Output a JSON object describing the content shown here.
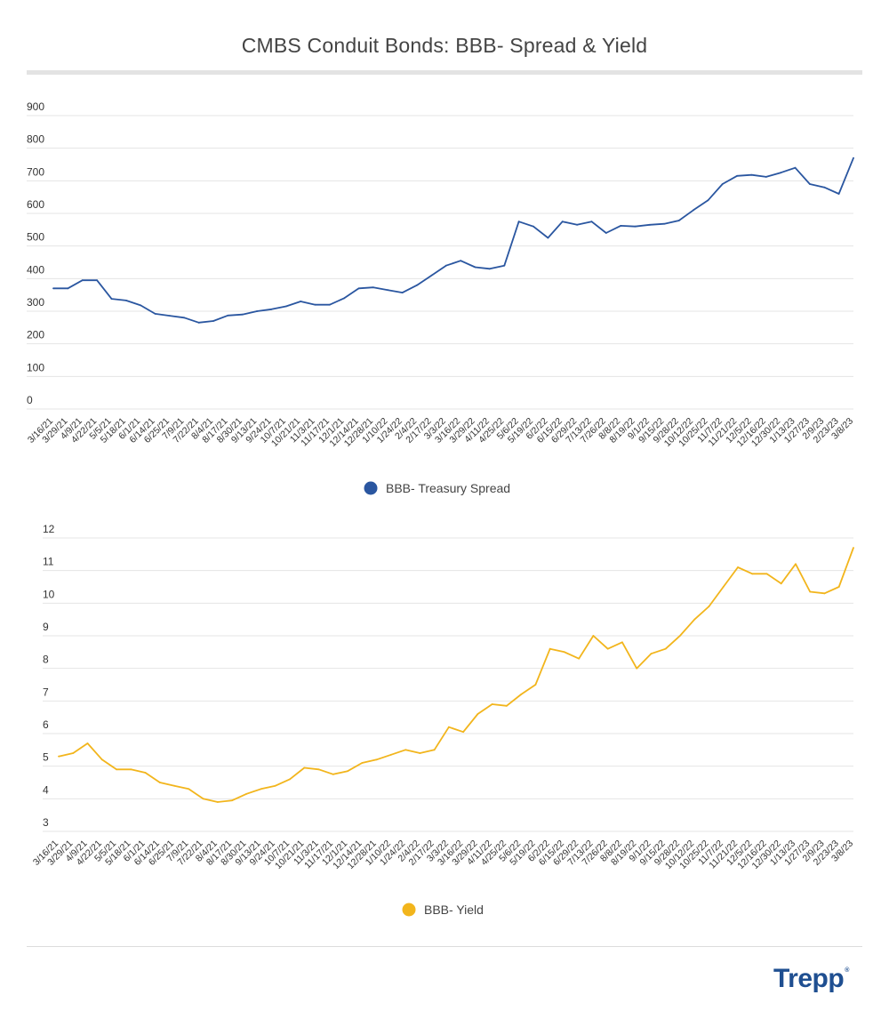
{
  "title": "CMBS Conduit Bonds: BBB- Spread & Yield",
  "logo": {
    "text": "Trepp",
    "mark": "®",
    "color": "#1f4f91"
  },
  "chart_data": [
    {
      "type": "line",
      "title": "",
      "xlabel": "",
      "ylabel": "",
      "ylim": [
        0,
        900
      ],
      "yticks": [
        0,
        100,
        200,
        300,
        400,
        500,
        600,
        700,
        800,
        900
      ],
      "grid": true,
      "legend": "bottom-center",
      "categories": [
        "3/16/21",
        "3/29/21",
        "4/9/21",
        "4/22/21",
        "5/5/21",
        "5/18/21",
        "6/1/21",
        "6/14/21",
        "6/25/21",
        "7/9/21",
        "7/22/21",
        "8/4/21",
        "8/17/21",
        "8/30/21",
        "9/13/21",
        "9/24/21",
        "10/7/21",
        "10/21/21",
        "11/3/21",
        "11/17/21",
        "12/1/21",
        "12/14/21",
        "12/28/21",
        "1/10/22",
        "1/24/22",
        "2/4/22",
        "2/17/22",
        "3/3/22",
        "3/16/22",
        "3/29/22",
        "4/11/22",
        "4/25/22",
        "5/6/22",
        "5/19/22",
        "6/2/22",
        "6/15/22",
        "6/29/22",
        "7/13/22",
        "7/26/22",
        "8/8/22",
        "8/19/22",
        "9/1/22",
        "9/15/22",
        "9/28/22",
        "10/12/22",
        "10/25/22",
        "11/7/22",
        "11/21/22",
        "12/5/22",
        "12/16/22",
        "12/30/22",
        "1/13/23",
        "1/27/23",
        "2/9/23",
        "2/23/23",
        "3/8/23"
      ],
      "series": [
        {
          "name": "BBB- Treasury Spread",
          "color": "#2a56a0",
          "values": [
            370,
            370,
            395,
            395,
            338,
            333,
            318,
            292,
            286,
            280,
            265,
            270,
            287,
            290,
            300,
            306,
            315,
            330,
            320,
            320,
            340,
            370,
            373,
            365,
            357,
            380,
            410,
            440,
            455,
            435,
            430,
            440,
            575,
            560,
            525,
            575,
            565,
            575,
            540,
            562,
            560,
            565,
            568,
            578,
            610,
            640,
            690,
            715,
            718,
            712,
            725,
            740,
            690,
            680,
            660,
            770
          ]
        }
      ]
    },
    {
      "type": "line",
      "title": "",
      "xlabel": "",
      "ylabel": "",
      "ylim": [
        3,
        12
      ],
      "yticks": [
        3,
        4,
        5,
        6,
        7,
        8,
        9,
        10,
        11,
        12
      ],
      "grid": true,
      "legend": "bottom-center",
      "categories": [
        "3/16/21",
        "3/29/21",
        "4/9/21",
        "4/22/21",
        "5/5/21",
        "5/18/21",
        "6/1/21",
        "6/14/21",
        "6/25/21",
        "7/9/21",
        "7/22/21",
        "8/4/21",
        "8/17/21",
        "8/30/21",
        "9/13/21",
        "9/24/21",
        "10/7/21",
        "10/21/21",
        "11/3/21",
        "11/17/21",
        "12/1/21",
        "12/14/21",
        "12/28/21",
        "1/10/22",
        "1/24/22",
        "2/4/22",
        "2/17/22",
        "3/3/22",
        "3/16/22",
        "3/29/22",
        "4/11/22",
        "4/25/22",
        "5/6/22",
        "5/19/22",
        "6/2/22",
        "6/15/22",
        "6/29/22",
        "7/13/22",
        "7/26/22",
        "8/8/22",
        "8/19/22",
        "9/1/22",
        "9/15/22",
        "9/28/22",
        "10/12/22",
        "10/25/22",
        "11/7/22",
        "11/21/22",
        "12/5/22",
        "12/16/22",
        "12/30/22",
        "1/13/23",
        "1/27/23",
        "2/9/23",
        "2/23/23",
        "3/8/23"
      ],
      "series": [
        {
          "name": "BBB- Yield",
          "color": "#f2b51c",
          "values": [
            5.3,
            5.4,
            5.7,
            5.2,
            4.9,
            4.9,
            4.8,
            4.5,
            4.4,
            4.3,
            4.0,
            3.9,
            3.95,
            4.15,
            4.3,
            4.4,
            4.6,
            4.95,
            4.9,
            4.75,
            4.85,
            5.1,
            5.2,
            5.35,
            5.5,
            5.4,
            5.5,
            6.2,
            6.05,
            6.6,
            6.9,
            6.85,
            7.2,
            7.5,
            8.6,
            8.5,
            8.3,
            9.0,
            8.6,
            8.8,
            8.0,
            8.45,
            8.6,
            9.0,
            9.5,
            9.9,
            10.5,
            11.1,
            10.9,
            10.9,
            10.6,
            11.2,
            10.35,
            10.3,
            10.5,
            11.7
          ]
        }
      ]
    }
  ]
}
